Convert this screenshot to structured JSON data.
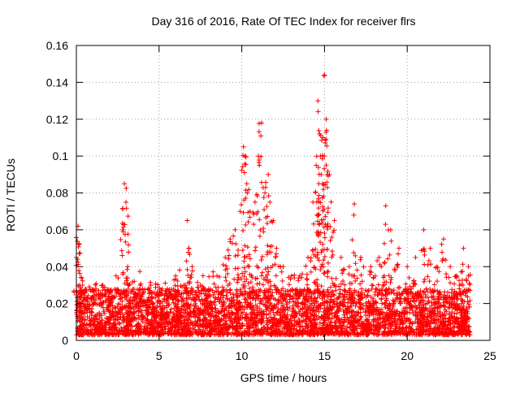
{
  "chart_data": {
    "type": "scatter",
    "title": "Day 316 of 2016, Rate Of TEC Index for receiver flrs",
    "xlabel": "GPS time / hours",
    "ylabel": "ROTI / TECUs",
    "xlim": [
      0,
      25
    ],
    "ylim": [
      0,
      0.16
    ],
    "x_ticks": [
      0,
      5,
      10,
      15,
      20,
      25
    ],
    "x_tick_labels": [
      "0",
      "5",
      "10",
      "15",
      "20",
      "25"
    ],
    "y_ticks": [
      0,
      0.02,
      0.04,
      0.06,
      0.08,
      0.1,
      0.12,
      0.14,
      0.16
    ],
    "y_tick_labels": [
      "0",
      "0.02",
      "0.04",
      "0.06",
      "0.08",
      "0.1",
      "0.12",
      "0.14",
      "0.16"
    ],
    "grid": true,
    "marker": "+",
    "marker_color": "#ff0000",
    "series": [
      {
        "name": "ROTI",
        "x": [
          0.0,
          0.1,
          0.15,
          0.2,
          0.3,
          0.5,
          0.8,
          1.2,
          1.6,
          2.0,
          2.4,
          2.8,
          2.9,
          3.0,
          3.1,
          3.5,
          4.0,
          4.5,
          5.0,
          5.5,
          6.0,
          6.5,
          6.7,
          6.8,
          7.0,
          7.5,
          8.0,
          8.5,
          9.0,
          9.3,
          9.6,
          9.9,
          10.1,
          10.2,
          10.3,
          10.5,
          10.8,
          11.0,
          11.2,
          11.4,
          11.6,
          11.7,
          11.9,
          12.1,
          12.5,
          13.0,
          13.5,
          14.0,
          14.3,
          14.5,
          14.6,
          14.7,
          14.8,
          14.9,
          15.0,
          15.1,
          15.3,
          15.6,
          16.0,
          16.5,
          16.8,
          17.2,
          17.8,
          18.3,
          18.7,
          19.0,
          19.5,
          20.0,
          20.5,
          21.0,
          21.4,
          21.8,
          22.2,
          22.6,
          23.0,
          23.4,
          23.7
        ],
        "y": [
          0.045,
          0.062,
          0.052,
          0.03,
          0.02,
          0.015,
          0.012,
          0.025,
          0.03,
          0.022,
          0.035,
          0.06,
          0.085,
          0.075,
          0.04,
          0.032,
          0.028,
          0.03,
          0.025,
          0.028,
          0.035,
          0.03,
          0.065,
          0.05,
          0.04,
          0.03,
          0.028,
          0.035,
          0.045,
          0.055,
          0.06,
          0.07,
          0.105,
          0.1,
          0.085,
          0.07,
          0.075,
          0.1,
          0.118,
          0.08,
          0.09,
          0.075,
          0.065,
          0.05,
          0.04,
          0.035,
          0.035,
          0.045,
          0.075,
          0.095,
          0.13,
          0.112,
          0.09,
          0.11,
          0.144,
          0.12,
          0.09,
          0.065,
          0.045,
          0.04,
          0.074,
          0.045,
          0.04,
          0.045,
          0.073,
          0.06,
          0.05,
          0.04,
          0.045,
          0.06,
          0.05,
          0.04,
          0.055,
          0.04,
          0.035,
          0.05,
          0.04
        ]
      }
    ],
    "dense_band": {
      "x_range": [
        0,
        23.8
      ],
      "y_floor": 0.003,
      "typical_max": 0.025
    }
  }
}
